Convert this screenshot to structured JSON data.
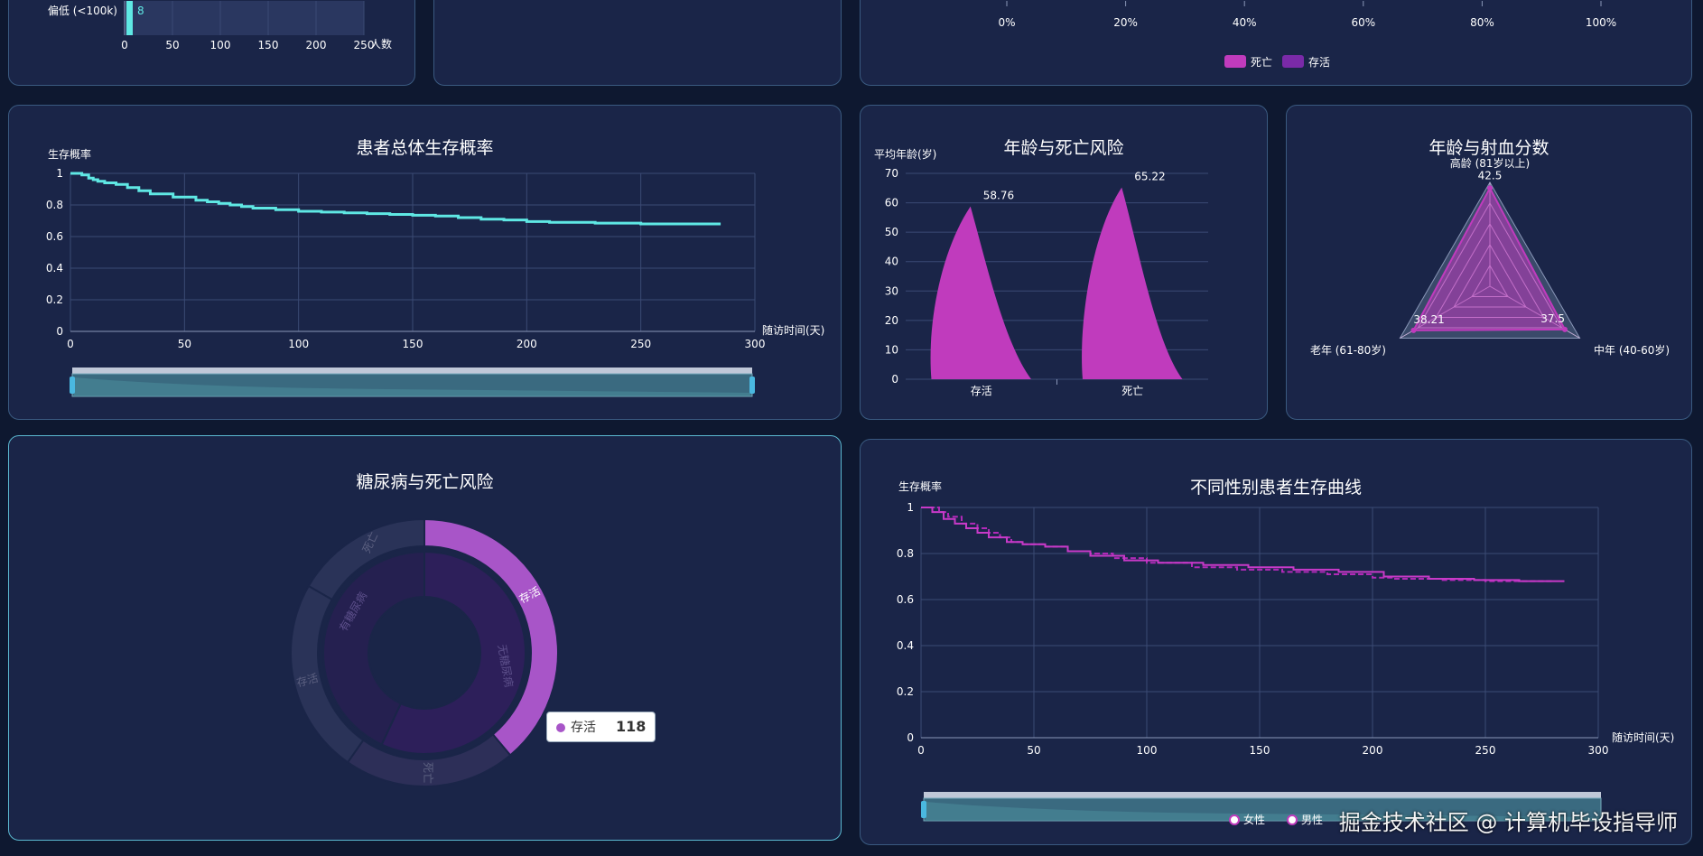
{
  "colors": {
    "cyan": "#5fe8e4",
    "magenta": "#c03bbd",
    "purple": "#7a2aa8",
    "grid": "#3b4a74",
    "axis": "#8a97b8"
  },
  "panels": {
    "histogram": {
      "category_label": "偏低 (<100k)",
      "bar_value_label": "8",
      "x_axis_name": "人数",
      "x_ticks": [
        "0",
        "50",
        "100",
        "150",
        "200",
        "250"
      ]
    },
    "stacked": {
      "x_ticks": [
        "0%",
        "20%",
        "40%",
        "60%",
        "80%",
        "100%"
      ],
      "legend": [
        {
          "name": "死亡",
          "color": "#c03bbd"
        },
        {
          "name": "存活",
          "color": "#7a2aa8"
        }
      ]
    },
    "survival": {
      "title": "患者总体生存概率",
      "y_axis_name": "生存概率",
      "x_axis_name": "随访时间(天)"
    },
    "age_risk": {
      "title": "年龄与死亡风险",
      "y_axis_name": "平均年龄(岁)"
    },
    "radar": {
      "title": "年龄与射血分数"
    },
    "diabetes": {
      "title": "糖尿病与死亡风险",
      "tooltip": {
        "name": "存活",
        "value": "118"
      }
    },
    "gender": {
      "title": "不同性别患者生存曲线",
      "y_axis_name": "生存概率",
      "x_axis_name": "随访时间(天)",
      "legend": [
        "女性",
        "男性"
      ]
    }
  },
  "watermark": "掘金技术社区 @ 计算机毕设指导师",
  "chart_data": [
    {
      "type": "bar",
      "orientation": "horizontal",
      "categories": [
        "偏低 (<100k)"
      ],
      "values": [
        8
      ],
      "xlabel": "人数",
      "xlim": [
        0,
        250
      ],
      "note": "partially cropped"
    },
    {
      "type": "bar",
      "orientation": "horizontal",
      "stacked": true,
      "percent": true,
      "x_ticks": [
        "0%",
        "20%",
        "40%",
        "60%",
        "80%",
        "100%"
      ],
      "series": [
        {
          "name": "死亡"
        },
        {
          "name": "存活"
        }
      ],
      "note": "bars cropped"
    },
    {
      "type": "line",
      "step": true,
      "title": "患者总体生存概率",
      "xlabel": "随访时间(天)",
      "ylabel": "生存概率",
      "xlim": [
        0,
        300
      ],
      "ylim": [
        0,
        1
      ],
      "x": [
        0,
        5,
        8,
        10,
        12,
        15,
        20,
        25,
        30,
        35,
        45,
        55,
        60,
        65,
        70,
        75,
        80,
        90,
        100,
        110,
        120,
        130,
        140,
        150,
        160,
        170,
        180,
        190,
        200,
        210,
        230,
        250,
        270,
        285
      ],
      "y": [
        1.0,
        0.99,
        0.97,
        0.96,
        0.95,
        0.94,
        0.93,
        0.91,
        0.89,
        0.87,
        0.85,
        0.83,
        0.82,
        0.81,
        0.8,
        0.79,
        0.78,
        0.77,
        0.76,
        0.755,
        0.75,
        0.745,
        0.74,
        0.735,
        0.73,
        0.72,
        0.71,
        0.705,
        0.695,
        0.69,
        0.685,
        0.68,
        0.68,
        0.68
      ]
    },
    {
      "type": "bar",
      "shape": "pictorial-peak",
      "title": "年龄与死亡风险",
      "ylabel": "平均年龄(岁)",
      "categories": [
        "存活",
        "死亡"
      ],
      "values": [
        58.76,
        65.22
      ],
      "ylim": [
        0,
        70
      ],
      "y_ticks": [
        0,
        10,
        20,
        30,
        40,
        50,
        60,
        70
      ]
    },
    {
      "type": "radar",
      "title": "年龄与射血分数",
      "indicators": [
        "高龄 (81岁以上)",
        "中年 (40-60岁)",
        "老年 (61-80岁)"
      ],
      "values": [
        42.5,
        37.5,
        38.21
      ],
      "value_labels": [
        "42.5",
        "37.5",
        "38.21"
      ]
    },
    {
      "type": "pie",
      "nested": true,
      "title": "糖尿病与死亡风险",
      "inner": [
        {
          "name": "无糖尿病"
        },
        {
          "name": "有糖尿病"
        }
      ],
      "outer": [
        {
          "name": "存活",
          "value": 118,
          "highlighted": true
        },
        {
          "name": "死亡"
        },
        {
          "name": "存活"
        },
        {
          "name": "死亡"
        }
      ]
    },
    {
      "type": "line",
      "step": true,
      "title": "不同性别患者生存曲线",
      "xlabel": "随访时间(天)",
      "ylabel": "生存概率",
      "xlim": [
        0,
        300
      ],
      "ylim": [
        0,
        1
      ],
      "series": [
        {
          "name": "女性",
          "x": [
            0,
            8,
            12,
            18,
            25,
            30,
            35,
            40,
            45,
            55,
            65,
            75,
            85,
            100,
            120,
            140,
            160,
            180,
            200,
            210,
            230,
            250,
            280
          ],
          "y": [
            1.0,
            0.98,
            0.96,
            0.93,
            0.91,
            0.89,
            0.87,
            0.85,
            0.84,
            0.83,
            0.81,
            0.8,
            0.78,
            0.76,
            0.74,
            0.73,
            0.72,
            0.71,
            0.695,
            0.69,
            0.685,
            0.68,
            0.68
          ]
        },
        {
          "name": "男性",
          "x": [
            0,
            5,
            10,
            15,
            20,
            25,
            30,
            38,
            45,
            55,
            65,
            75,
            90,
            105,
            125,
            145,
            165,
            185,
            205,
            225,
            245,
            265,
            285
          ],
          "y": [
            1.0,
            0.98,
            0.95,
            0.93,
            0.91,
            0.89,
            0.87,
            0.85,
            0.84,
            0.83,
            0.81,
            0.79,
            0.77,
            0.76,
            0.75,
            0.74,
            0.73,
            0.72,
            0.7,
            0.69,
            0.685,
            0.68,
            0.68
          ]
        }
      ]
    }
  ]
}
